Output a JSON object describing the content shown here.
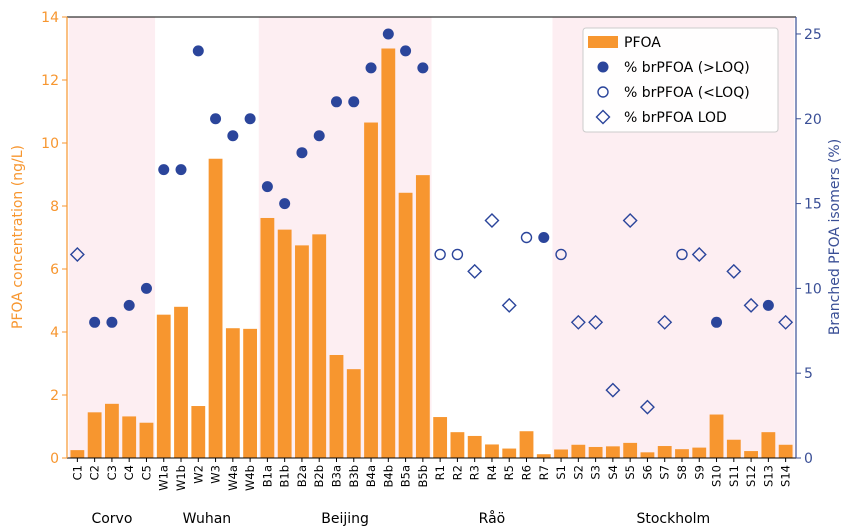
{
  "chart_data": {
    "type": "bar",
    "ylabel": "PFOA concentration (ng/L)",
    "y2label": "Branched PFOA isomers (%)",
    "ylim": [
      0,
      14
    ],
    "y2lim": [
      0,
      26
    ],
    "yticks": [
      "0",
      "2",
      "4",
      "6",
      "8",
      "10",
      "12",
      "14"
    ],
    "y2ticks": [
      "0",
      "5",
      "10",
      "15",
      "20",
      "25"
    ],
    "colors": {
      "bar": "#f7962f",
      "left_axis": "#f7962f",
      "right_axis": "#3a4f96",
      "marker": "#2b459b",
      "shade": "#fdeef2"
    },
    "legend": {
      "position": "top-right",
      "entries": [
        "PFOA",
        "% brPFOA (>LOQ)",
        "% brPFOA (<LOQ)",
        "% brPFOA LOD"
      ]
    },
    "groups": [
      {
        "name": "Corvo",
        "shaded": true
      },
      {
        "name": "Wuhan",
        "shaded": false
      },
      {
        "name": "Beijing",
        "shaded": true
      },
      {
        "name": "Råö",
        "shaded": false
      },
      {
        "name": "Stockholm",
        "shaded": true
      }
    ],
    "samples": [
      {
        "label": "C1",
        "group": 0,
        "pfoa": 0.25,
        "br": 12,
        "marker": "lod"
      },
      {
        "label": "C2",
        "group": 0,
        "pfoa": 1.45,
        "br": 8,
        "marker": "loq_above"
      },
      {
        "label": "C3",
        "group": 0,
        "pfoa": 1.72,
        "br": 8,
        "marker": "loq_above"
      },
      {
        "label": "C4",
        "group": 0,
        "pfoa": 1.32,
        "br": 9,
        "marker": "loq_above"
      },
      {
        "label": "C5",
        "group": 0,
        "pfoa": 1.12,
        "br": 10,
        "marker": "loq_above"
      },
      {
        "label": "W1a",
        "group": 1,
        "pfoa": 4.55,
        "br": 17,
        "marker": "loq_above"
      },
      {
        "label": "W1b",
        "group": 1,
        "pfoa": 4.8,
        "br": 17,
        "marker": "loq_above"
      },
      {
        "label": "W2",
        "group": 1,
        "pfoa": 1.65,
        "br": 24,
        "marker": "loq_above"
      },
      {
        "label": "W3",
        "group": 1,
        "pfoa": 9.5,
        "br": 20,
        "marker": "loq_above"
      },
      {
        "label": "W4a",
        "group": 1,
        "pfoa": 4.12,
        "br": 19,
        "marker": "loq_above"
      },
      {
        "label": "W4b",
        "group": 1,
        "pfoa": 4.1,
        "br": 20,
        "marker": "loq_above"
      },
      {
        "label": "B1a",
        "group": 2,
        "pfoa": 7.62,
        "br": 16,
        "marker": "loq_above"
      },
      {
        "label": "B1b",
        "group": 2,
        "pfoa": 7.25,
        "br": 15,
        "marker": "loq_above"
      },
      {
        "label": "B2a",
        "group": 2,
        "pfoa": 6.75,
        "br": 18,
        "marker": "loq_above"
      },
      {
        "label": "B2b",
        "group": 2,
        "pfoa": 7.1,
        "br": 19,
        "marker": "loq_above"
      },
      {
        "label": "B3a",
        "group": 2,
        "pfoa": 3.27,
        "br": 21,
        "marker": "loq_above"
      },
      {
        "label": "B3b",
        "group": 2,
        "pfoa": 2.82,
        "br": 21,
        "marker": "loq_above"
      },
      {
        "label": "B4a",
        "group": 2,
        "pfoa": 10.65,
        "br": 23,
        "marker": "loq_above"
      },
      {
        "label": "B4b",
        "group": 2,
        "pfoa": 13.0,
        "br": 25,
        "marker": "loq_above"
      },
      {
        "label": "B5a",
        "group": 2,
        "pfoa": 8.42,
        "br": 24,
        "marker": "loq_above"
      },
      {
        "label": "B5b",
        "group": 2,
        "pfoa": 8.98,
        "br": 23,
        "marker": "loq_above"
      },
      {
        "label": "R1",
        "group": 3,
        "pfoa": 1.3,
        "br": 12,
        "marker": "loq_below"
      },
      {
        "label": "R2",
        "group": 3,
        "pfoa": 0.82,
        "br": 12,
        "marker": "loq_below"
      },
      {
        "label": "R3",
        "group": 3,
        "pfoa": 0.7,
        "br": 11,
        "marker": "lod"
      },
      {
        "label": "R4",
        "group": 3,
        "pfoa": 0.43,
        "br": 14,
        "marker": "lod"
      },
      {
        "label": "R5",
        "group": 3,
        "pfoa": 0.3,
        "br": 9,
        "marker": "lod"
      },
      {
        "label": "R6",
        "group": 3,
        "pfoa": 0.85,
        "br": 13,
        "marker": "loq_below"
      },
      {
        "label": "R7",
        "group": 3,
        "pfoa": 0.12,
        "br": 13,
        "marker": "loq_above"
      },
      {
        "label": "S1",
        "group": 4,
        "pfoa": 0.27,
        "br": 12,
        "marker": "loq_below"
      },
      {
        "label": "S2",
        "group": 4,
        "pfoa": 0.42,
        "br": 8,
        "marker": "lod"
      },
      {
        "label": "S3",
        "group": 4,
        "pfoa": 0.35,
        "br": 8,
        "marker": "lod"
      },
      {
        "label": "S4",
        "group": 4,
        "pfoa": 0.37,
        "br": 4,
        "marker": "lod"
      },
      {
        "label": "S5",
        "group": 4,
        "pfoa": 0.48,
        "br": 14,
        "marker": "lod"
      },
      {
        "label": "S6",
        "group": 4,
        "pfoa": 0.18,
        "br": 3,
        "marker": "lod"
      },
      {
        "label": "S7",
        "group": 4,
        "pfoa": 0.38,
        "br": 8,
        "marker": "lod"
      },
      {
        "label": "S8",
        "group": 4,
        "pfoa": 0.28,
        "br": 12,
        "marker": "loq_below"
      },
      {
        "label": "S9",
        "group": 4,
        "pfoa": 0.33,
        "br": 12,
        "marker": "lod"
      },
      {
        "label": "S10",
        "group": 4,
        "pfoa": 1.38,
        "br": 8,
        "marker": "loq_above"
      },
      {
        "label": "S11",
        "group": 4,
        "pfoa": 0.58,
        "br": 11,
        "marker": "lod"
      },
      {
        "label": "S12",
        "group": 4,
        "pfoa": 0.22,
        "br": 9,
        "marker": "lod"
      },
      {
        "label": "S13",
        "group": 4,
        "pfoa": 0.82,
        "br": 9,
        "marker": "loq_above"
      },
      {
        "label": "S14",
        "group": 4,
        "pfoa": 0.42,
        "br": 8,
        "marker": "lod"
      }
    ]
  }
}
